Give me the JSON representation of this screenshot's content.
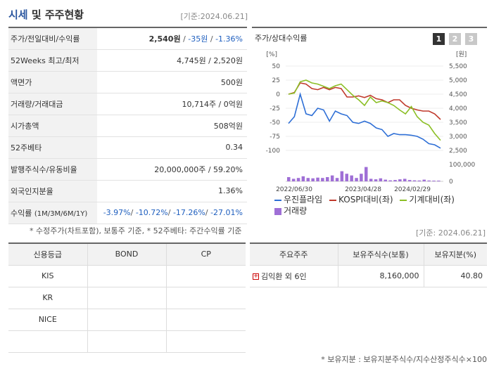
{
  "header": {
    "title_main": "시세",
    "title_sub": " 및 주주현황",
    "date": "[기준:2024.06.21]"
  },
  "info": {
    "price_label": "주가/전일대비/수익률",
    "price": "2,540원",
    "change": "-35원",
    "change_rate": "-1.36%",
    "week52_label": "52Weeks 최고/최저",
    "week52_value": "4,745원 / 2,520원",
    "par_label": "액면가",
    "par_value": "500원",
    "volume_label": "거래량/거래대금",
    "volume_value": "10,714주 / 0억원",
    "mcap_label": "시가총액",
    "mcap_value": "508억원",
    "beta_label": "52주베타",
    "beta_value": "0.34",
    "shares_label": "발행주식수/유동비율",
    "shares_value": "20,000,000주 / 59.20%",
    "foreign_label": "외국인지분율",
    "foreign_value": "1.36%",
    "returns_label": "수익률",
    "returns_periods": "(1M/3M/6M/1Y)",
    "returns": [
      "-3.97%",
      "-10.72%",
      "-17.26%",
      "-27.01%"
    ]
  },
  "note1": "* 수정주가(차트포함), 보통주 기준, * 52주베타: 주간수익률 기준",
  "chart_panel": {
    "title": "주가/상대수익률",
    "tabs": [
      "1",
      "2",
      "3"
    ]
  },
  "chart_data": {
    "type": "line",
    "left_unit": "[%]",
    "right_unit": "[원]",
    "left_ticks": [
      "50",
      "25",
      "0",
      "-25",
      "-50",
      "-75",
      "-100"
    ],
    "right_ticks": [
      "5,500",
      "5,000",
      "4,500",
      "4,000",
      "3,500",
      "3,000",
      "2,500"
    ],
    "volume_ticks": [
      "100,000",
      "0"
    ],
    "x_ticks": [
      "2022/06/30",
      "2023/04/28",
      "2024/02/29"
    ],
    "left_range": [
      -100,
      50
    ],
    "series": [
      {
        "name": "우진플라임",
        "color": "#2e6fd6",
        "values": [
          -52,
          -40,
          0,
          -35,
          -38,
          -25,
          -28,
          -48,
          -30,
          -35,
          -38,
          -50,
          -52,
          -48,
          -52,
          -60,
          -63,
          -75,
          -70,
          -72,
          -72,
          -73,
          -75,
          -80,
          -88,
          -90,
          -96
        ]
      },
      {
        "name": "KOSPI대비(좌)",
        "color": "#c0392b",
        "values": [
          0,
          3,
          20,
          18,
          10,
          8,
          12,
          8,
          12,
          10,
          -5,
          -5,
          -3,
          -6,
          -2,
          -8,
          -10,
          -15,
          -10,
          -10,
          -20,
          -25,
          -28,
          -30,
          -30,
          -35,
          -45
        ]
      },
      {
        "name": "기계대비(좌)",
        "color": "#8cbf26",
        "values": [
          0,
          2,
          22,
          25,
          20,
          18,
          14,
          10,
          15,
          18,
          8,
          -2,
          -10,
          -20,
          -5,
          -15,
          -12,
          -15,
          -20,
          -28,
          -35,
          -22,
          -40,
          -50,
          -55,
          -70,
          -82
        ]
      }
    ],
    "volume_name": "거래량",
    "volume_color": "#9f6fd6",
    "volume": [
      25,
      15,
      20,
      30,
      20,
      18,
      22,
      20,
      25,
      35,
      20,
      60,
      45,
      35,
      20,
      45,
      85,
      15,
      12,
      18,
      10,
      6,
      8,
      12,
      15,
      8,
      6,
      5,
      10,
      5,
      4,
      4
    ]
  },
  "date2": "[기준: 2024.06.21]",
  "credit": {
    "headers": [
      "신용등급",
      "BOND",
      "CP"
    ],
    "rows": [
      "KIS",
      "KR",
      "NICE",
      ""
    ]
  },
  "holders": {
    "headers": [
      "주요주주",
      "보유주식수(보통)",
      "보유지분(%)"
    ],
    "rows": [
      {
        "name": "김익환 외 6인",
        "shares": "8,160,000",
        "pct": "40.80"
      }
    ]
  },
  "note2": "* 보유지분 : 보유지분주식수/지수산정주식수×100"
}
